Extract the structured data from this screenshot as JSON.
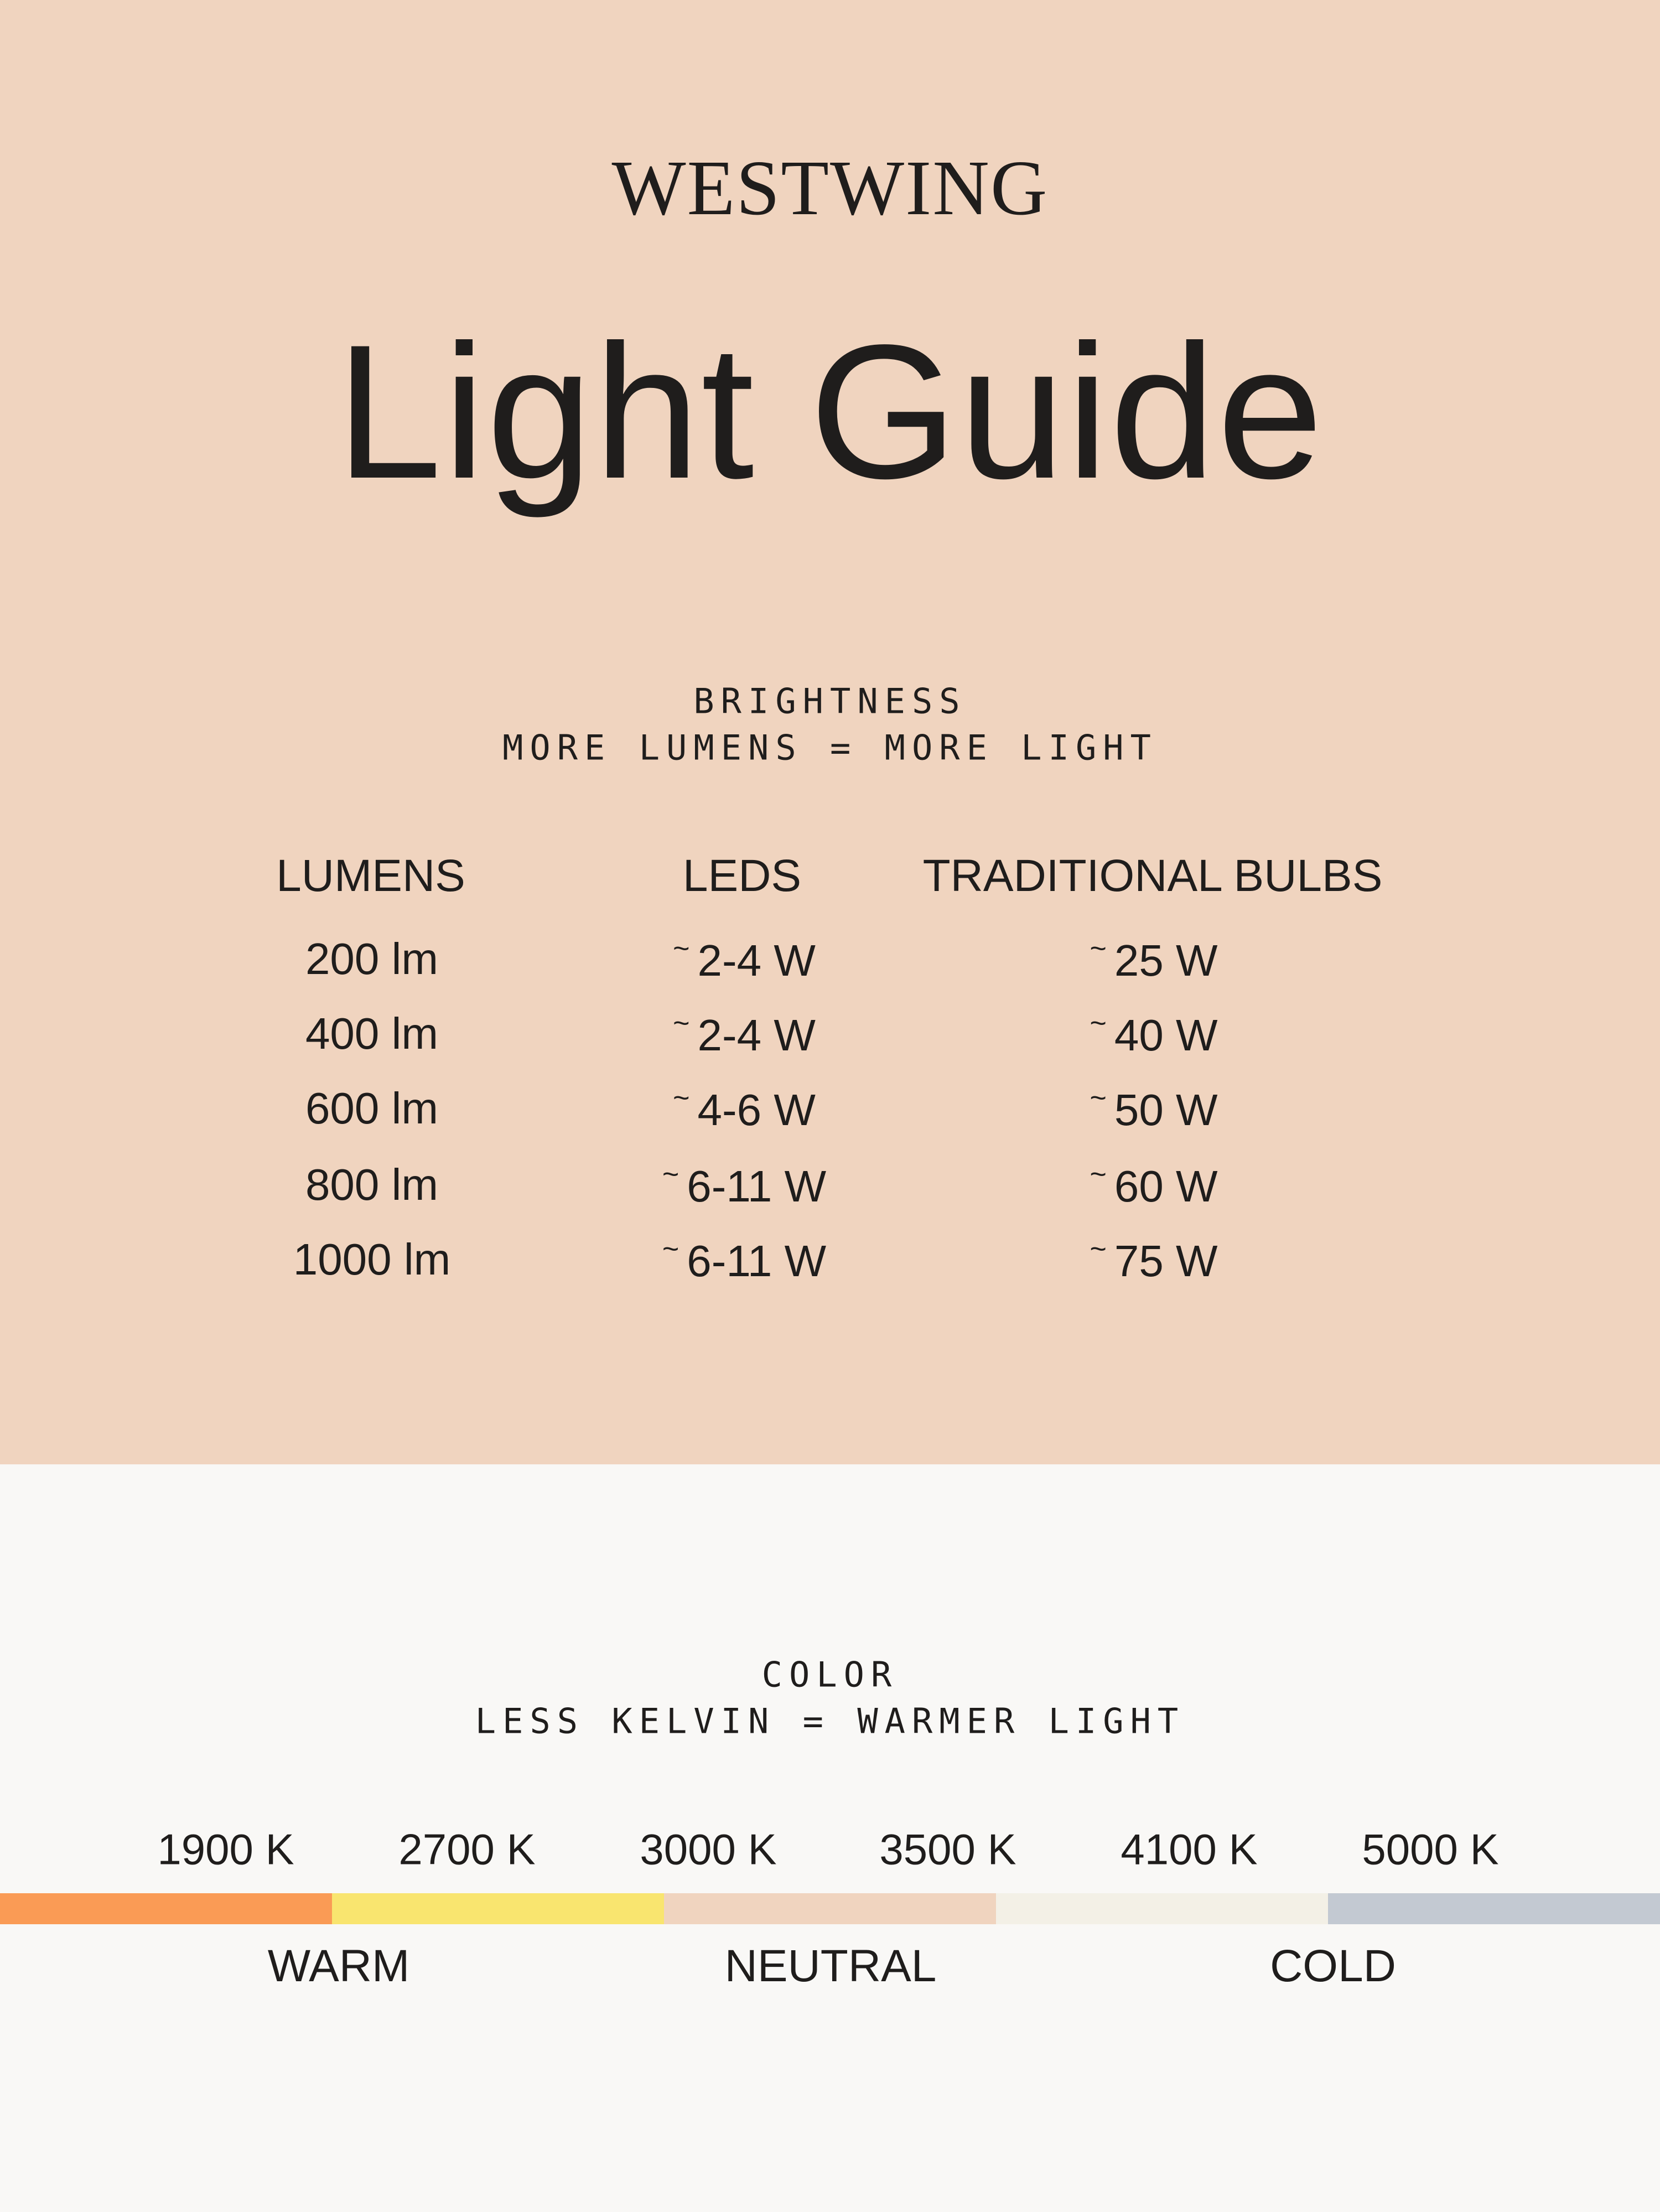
{
  "brand": "WESTWING",
  "title": "Light Guide",
  "brightness": {
    "heading": "BRIGHTNESS",
    "subheading": "MORE LUMENS = MORE LIGHT",
    "columns": [
      "LUMENS",
      "LEDS",
      "TRADITIONAL BULBS"
    ],
    "approx_symbol": "~",
    "rows": [
      {
        "lumens": "200 lm",
        "leds": "2-4 W",
        "traditional": "25 W"
      },
      {
        "lumens": "400 lm",
        "leds": "2-4 W",
        "traditional": "40 W"
      },
      {
        "lumens": "600 lm",
        "leds": "4-6 W",
        "traditional": "50 W"
      },
      {
        "lumens": "800 lm",
        "leds": "6-11 W",
        "traditional": "60 W"
      },
      {
        "lumens": "1000 lm",
        "leds": "6-11 W",
        "traditional": "75 W"
      }
    ]
  },
  "color": {
    "heading": "COLOR",
    "subheading": "LESS KELVIN = WARMER LIGHT",
    "kelvin_labels": [
      "1900 K",
      "2700 K",
      "3000 K",
      "3500 K",
      "4100 K",
      "5000 K"
    ],
    "swatches": [
      "#FA9B55",
      "#F9E56F",
      "#F0D4BF",
      "#F3F0E6",
      "#C3C9D2"
    ],
    "categories": [
      "WARM",
      "NEUTRAL",
      "COLD"
    ]
  },
  "colors": {
    "top_background": "#F0D4BF",
    "bottom_background": "#F9F8F6",
    "text": "#1F1D1C"
  }
}
